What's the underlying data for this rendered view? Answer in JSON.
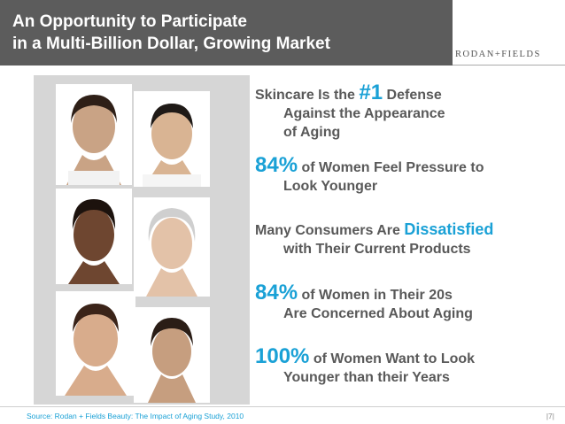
{
  "title": {
    "line1": "An Opportunity to Participate",
    "line2": "in a Multi-Billion Dollar, Growing Market"
  },
  "brand": "RODAN+FIELDS",
  "colors": {
    "accent": "#1aa1d6",
    "title_bar": "#5c5c5c",
    "text": "#595959"
  },
  "photos": [
    {
      "label": "face-woman-1"
    },
    {
      "label": "face-man-1"
    },
    {
      "label": "face-woman-2"
    },
    {
      "label": "face-woman-3"
    },
    {
      "label": "face-man-2"
    },
    {
      "label": "face-woman-4"
    }
  ],
  "bullets": {
    "b1": {
      "pre": "Skincare Is the ",
      "accent": "#1",
      "post": " Defense",
      "line2": "Against the Appearance",
      "line3": "of Aging"
    },
    "b2": {
      "accent": "84%",
      "post": " of Women Feel Pressure to",
      "line2": "Look Younger"
    },
    "b3": {
      "pre": "Many Consumers Are ",
      "accent": "Dissatisfied",
      "line2": "with Their Current Products"
    },
    "b4": {
      "accent": "84%",
      "post": " of Women in Their 20s",
      "line2": "Are Concerned About Aging"
    },
    "b5": {
      "accent": "100%",
      "post": " of Women Want to Look",
      "line2": "Younger than their Years"
    }
  },
  "footer": {
    "source": "Source: Rodan + Fields Beauty: The Impact of Aging Study, 2010",
    "page": "|7|"
  }
}
